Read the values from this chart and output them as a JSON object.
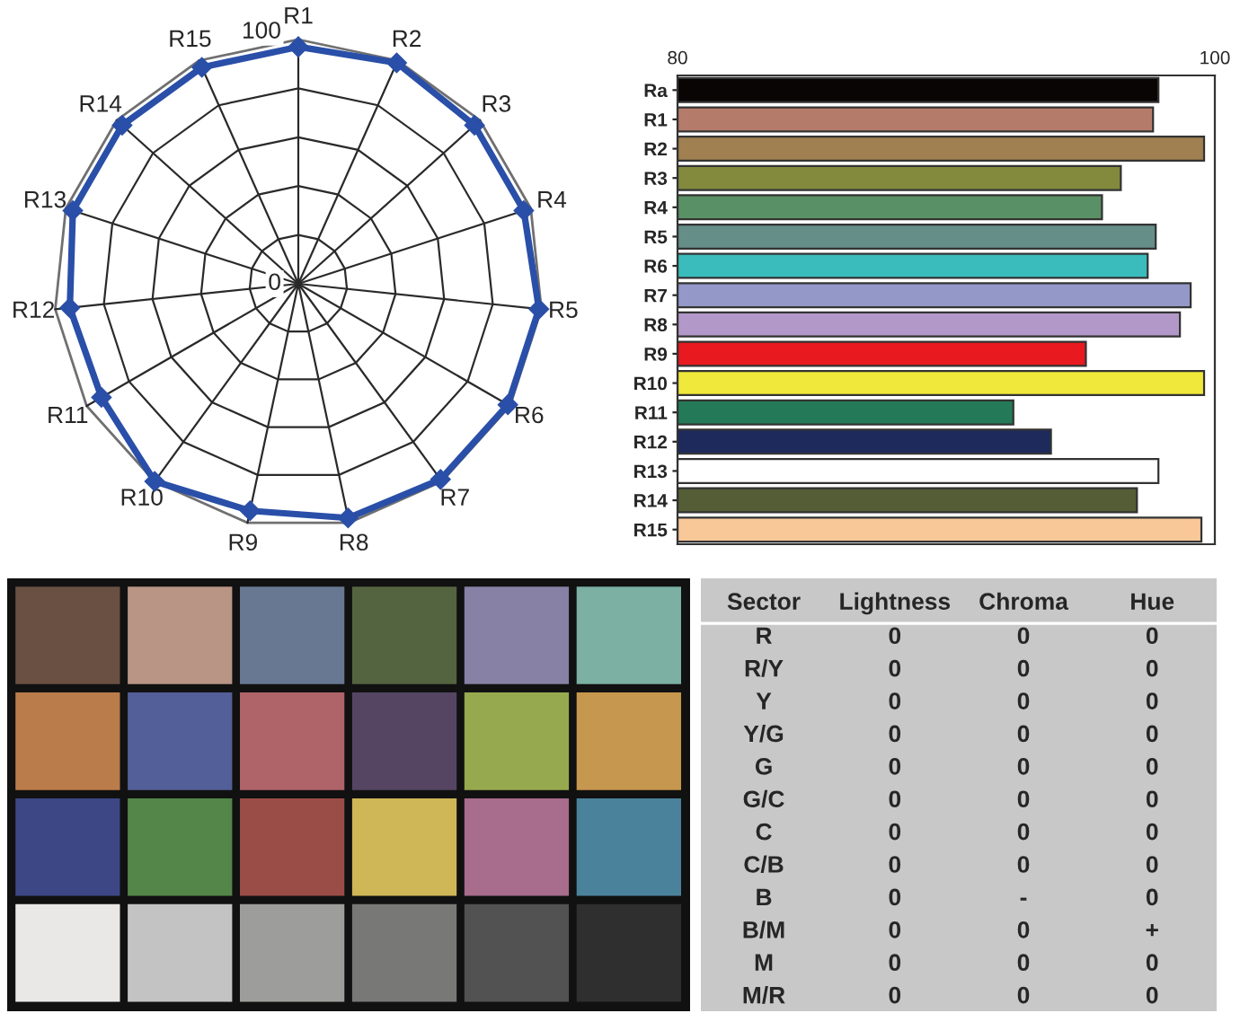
{
  "chart_data": [
    {
      "type": "radar",
      "categories": [
        "R1",
        "R2",
        "R3",
        "R4",
        "R5",
        "R6",
        "R7",
        "R8",
        "R9",
        "R10",
        "R11",
        "R12",
        "R13",
        "R14",
        "R15"
      ],
      "series": [
        {
          "color": "#2a4fa8",
          "values": [
            97,
            99,
            97,
            97,
            99,
            99,
            99,
            98,
            95,
            100,
            93,
            94,
            97,
            97,
            97
          ]
        }
      ],
      "ylim": [
        0,
        100
      ],
      "yticks": [
        0,
        100
      ],
      "grid": true,
      "marker": "diamond"
    },
    {
      "type": "bar",
      "orientation": "horizontal",
      "categories": [
        "Ra",
        "R1",
        "R2",
        "R3",
        "R4",
        "R5",
        "R6",
        "R7",
        "R8",
        "R9",
        "R10",
        "R11",
        "R12",
        "R13",
        "R14",
        "R15"
      ],
      "values": [
        97.9,
        97.7,
        99.6,
        96.5,
        95.8,
        97.8,
        97.5,
        99.1,
        98.7,
        95.2,
        99.6,
        92.5,
        93.9,
        97.9,
        97.1,
        99.5
      ],
      "colors": [
        "#0a0505",
        "#b57b6a",
        "#a08050",
        "#838a3e",
        "#5a9065",
        "#668e88",
        "#3bbcbc",
        "#9498c8",
        "#b298c8",
        "#e8191f",
        "#f0e83a",
        "#247a58",
        "#1e2a5c",
        "#ffffff",
        "#555d36",
        "#f8c898"
      ],
      "xlim": [
        80,
        100
      ],
      "xticks": [
        80,
        100
      ]
    },
    {
      "type": "other",
      "categories": [
        null,
        null,
        null,
        null,
        null,
        null
      ],
      "y_categories": [
        null,
        null,
        null,
        null
      ],
      "colors": [
        "#6a5042",
        "#b99585",
        "#687893",
        "#556440",
        "#8781a5",
        "#7bb0a3",
        "#bb7c4b",
        "#535f98",
        "#ae6469",
        "#554563",
        "#97a94f",
        "#c6974e",
        "#3d4785",
        "#538648",
        "#9a4c46",
        "#cfb656",
        "#a86c8c",
        "#4a829b",
        "#e9e8e6",
        "#c3c3c3",
        "#9d9d9c",
        "#787877",
        "#525252",
        "#2f2f2f"
      ]
    },
    {
      "type": "other",
      "ylabel": "Sector",
      "categories": [
        "Lightness",
        "Chroma",
        "Hue"
      ],
      "y_categories": [
        "R",
        "R/Y",
        "Y",
        "Y/G",
        "G",
        "G/C",
        "C",
        "C/B",
        "B",
        "B/M",
        "M",
        "M/R"
      ],
      "cell_labels": [
        [
          "0",
          "0",
          "0"
        ],
        [
          "0",
          "0",
          "0"
        ],
        [
          "0",
          "0",
          "0"
        ],
        [
          "0",
          "0",
          "0"
        ],
        [
          "0",
          "0",
          "0"
        ],
        [
          "0",
          "0",
          "0"
        ],
        [
          "0",
          "0",
          "0"
        ],
        [
          "0",
          "0",
          "0"
        ],
        [
          "0",
          "-",
          "0"
        ],
        [
          "0",
          "0",
          "+"
        ],
        [
          "0",
          "0",
          "0"
        ],
        [
          "0",
          "0",
          "0"
        ]
      ]
    }
  ]
}
